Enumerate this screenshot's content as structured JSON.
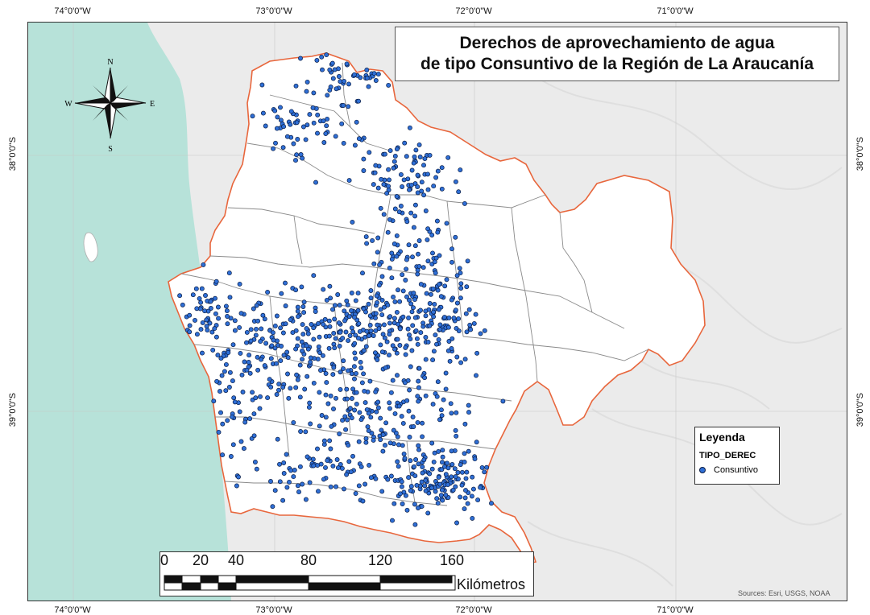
{
  "map": {
    "title_line1": "Derechos de aprovechamiento de agua",
    "title_line2": "de tipo Consuntivo de la Región de La Araucanía",
    "lon_labels": [
      "74°0'0\"W",
      "73°0'0\"W",
      "72°0'0\"W",
      "71°0'0\"W"
    ],
    "lat_labels": [
      "38°0'0\"S",
      "39°0'0\"S"
    ],
    "sources": "Sources: Esri, USGS, NOAA"
  },
  "legend": {
    "title": "Leyenda",
    "field": "TIPO_DEREC",
    "item_label": "Consuntivo"
  },
  "scale": {
    "ticks": [
      "0",
      "20",
      "40",
      "80",
      "120",
      "160"
    ],
    "unit": "Kilómetros"
  },
  "compass": {
    "n": "N",
    "s": "S",
    "e": "E",
    "w": "W"
  },
  "colors": {
    "ocean": "#b7e2d9",
    "terrain": "#ebebeb",
    "region_fill": "#ffffff",
    "region_border": "#e8663c",
    "commune_border": "#8a8a8a",
    "point_fill": "#2f6fd6",
    "point_stroke": "#0b1d44"
  }
}
